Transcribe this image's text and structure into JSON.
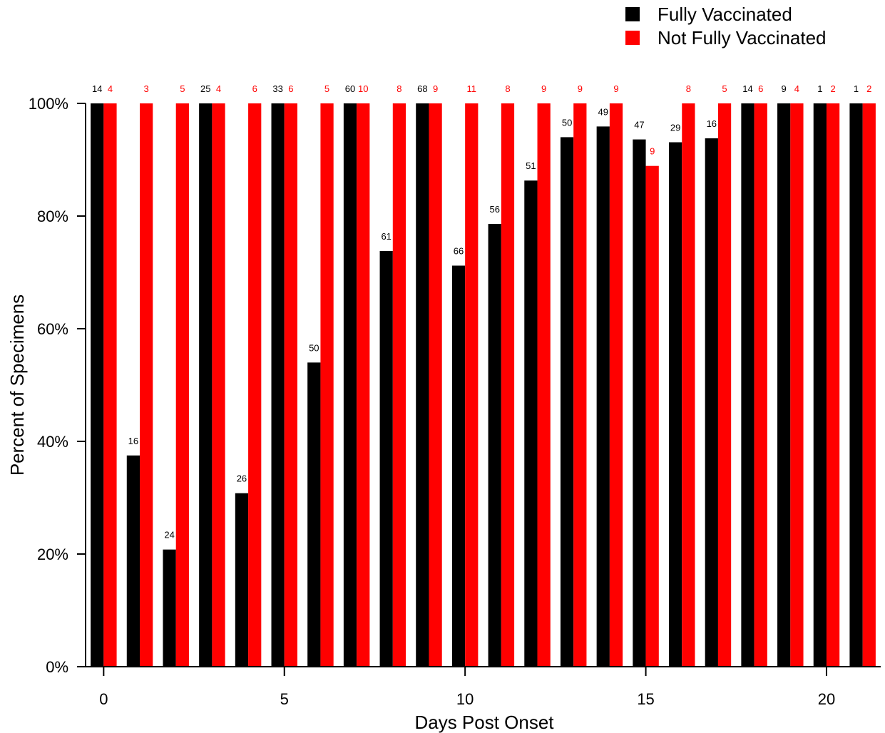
{
  "chart_data": {
    "type": "bar",
    "title": "",
    "xlabel": "Days Post Onset",
    "ylabel": "Percent of Specimens",
    "x": [
      0,
      1,
      2,
      3,
      4,
      5,
      6,
      7,
      8,
      9,
      10,
      11,
      12,
      13,
      14,
      15,
      16,
      17,
      18,
      19,
      20,
      21
    ],
    "xticks": [
      0,
      5,
      10,
      15,
      20
    ],
    "xlim": [
      -0.5,
      21.5
    ],
    "ylim": [
      0,
      100
    ],
    "yticks": [
      0,
      20,
      40,
      60,
      80,
      100
    ],
    "ytick_labels": [
      "0%",
      "20%",
      "40%",
      "60%",
      "80%",
      "100%"
    ],
    "legend_position": "top-right",
    "grid": false,
    "series": [
      {
        "name": "Fully Vaccinated",
        "color": "#000000",
        "values": [
          100,
          37.5,
          20.8,
          100,
          30.8,
          100,
          54,
          100,
          73.8,
          100,
          71.2,
          78.6,
          86.3,
          94,
          95.9,
          93.6,
          93.1,
          93.8,
          100,
          100,
          100,
          100
        ],
        "counts": [
          "14",
          "16",
          "24",
          "25",
          "26",
          "33",
          "50",
          "60",
          "61",
          "68",
          "66",
          "56",
          "51",
          "50",
          "49",
          "47",
          "29",
          "16",
          "14",
          "9",
          "1",
          "1"
        ]
      },
      {
        "name": "Not Fully Vaccinated",
        "color": "#ff0000",
        "values": [
          100,
          100,
          100,
          100,
          100,
          100,
          100,
          100,
          100,
          100,
          100,
          100,
          100,
          100,
          100,
          88.9,
          100,
          100,
          100,
          100,
          100,
          100
        ],
        "counts": [
          "4",
          "3",
          "5",
          "4",
          "6",
          "6",
          "5",
          "10",
          "8",
          "9",
          "11",
          "8",
          "9",
          "9",
          "9",
          "9",
          "8",
          "5",
          "6",
          "4",
          "2",
          "2"
        ]
      }
    ]
  }
}
